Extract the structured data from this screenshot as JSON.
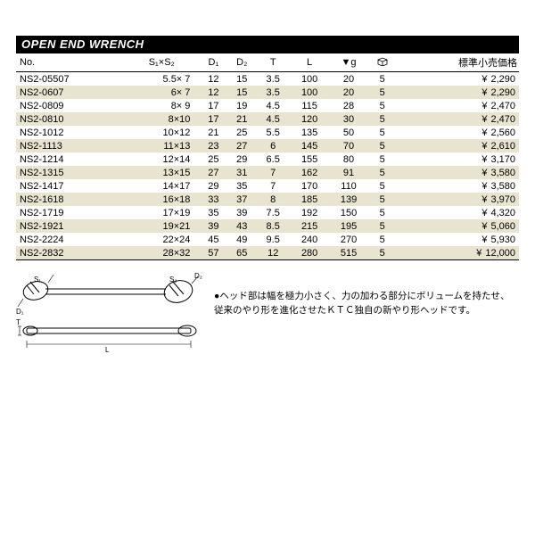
{
  "title": "OPEN END WRENCH",
  "headers": {
    "no": "No.",
    "s1s2": "S₁×S₂",
    "d1": "D₁",
    "d2": "D₂",
    "t": "T",
    "l": "L",
    "g": "▼g",
    "box": "⃞",
    "price": "標準小売価格"
  },
  "rows": [
    {
      "no": "NS2-05507",
      "s": "5.5×  7",
      "d1": "12",
      "d2": "15",
      "t": "3.5",
      "l": "100",
      "g": "20",
      "b": "5",
      "p": "2,290",
      "shade": false
    },
    {
      "no": "NS2-0607",
      "s": "6×  7",
      "d1": "12",
      "d2": "15",
      "t": "3.5",
      "l": "100",
      "g": "20",
      "b": "5",
      "p": "2,290",
      "shade": true
    },
    {
      "no": "NS2-0809",
      "s": "8×  9",
      "d1": "17",
      "d2": "19",
      "t": "4.5",
      "l": "115",
      "g": "28",
      "b": "5",
      "p": "2,470",
      "shade": false
    },
    {
      "no": "NS2-0810",
      "s": "8×10",
      "d1": "17",
      "d2": "21",
      "t": "4.5",
      "l": "120",
      "g": "30",
      "b": "5",
      "p": "2,470",
      "shade": true
    },
    {
      "no": "NS2-1012",
      "s": "10×12",
      "d1": "21",
      "d2": "25",
      "t": "5.5",
      "l": "135",
      "g": "50",
      "b": "5",
      "p": "2,560",
      "shade": false
    },
    {
      "no": "NS2-1113",
      "s": "11×13",
      "d1": "23",
      "d2": "27",
      "t": "6",
      "l": "145",
      "g": "70",
      "b": "5",
      "p": "2,610",
      "shade": true
    },
    {
      "no": "NS2-1214",
      "s": "12×14",
      "d1": "25",
      "d2": "29",
      "t": "6.5",
      "l": "155",
      "g": "80",
      "b": "5",
      "p": "3,170",
      "shade": false
    },
    {
      "no": "NS2-1315",
      "s": "13×15",
      "d1": "27",
      "d2": "31",
      "t": "7",
      "l": "162",
      "g": "91",
      "b": "5",
      "p": "3,580",
      "shade": true
    },
    {
      "no": "NS2-1417",
      "s": "14×17",
      "d1": "29",
      "d2": "35",
      "t": "7",
      "l": "170",
      "g": "110",
      "b": "5",
      "p": "3,580",
      "shade": false
    },
    {
      "no": "NS2-1618",
      "s": "16×18",
      "d1": "33",
      "d2": "37",
      "t": "8",
      "l": "185",
      "g": "139",
      "b": "5",
      "p": "3,970",
      "shade": true
    },
    {
      "no": "NS2-1719",
      "s": "17×19",
      "d1": "35",
      "d2": "39",
      "t": "7.5",
      "l": "192",
      "g": "150",
      "b": "5",
      "p": "4,320",
      "shade": false
    },
    {
      "no": "NS2-1921",
      "s": "19×21",
      "d1": "39",
      "d2": "43",
      "t": "8.5",
      "l": "215",
      "g": "195",
      "b": "5",
      "p": "5,060",
      "shade": true
    },
    {
      "no": "NS2-2224",
      "s": "22×24",
      "d1": "45",
      "d2": "49",
      "t": "9.5",
      "l": "240",
      "g": "270",
      "b": "5",
      "p": "5,930",
      "shade": false
    },
    {
      "no": "NS2-2832",
      "s": "28×32",
      "d1": "57",
      "d2": "65",
      "t": "12",
      "l": "280",
      "g": "515",
      "b": "5",
      "p": "12,000",
      "shade": true
    }
  ],
  "note": "●ヘッド部は幅を極力小さく、力の加わる部分にボリュームを持たせ、従来のやり形を進化させたＫＴＣ独自の新やり形ヘッドです。",
  "diagram_labels": {
    "d1": "D₁",
    "s1": "S₁",
    "s2": "S₂",
    "d2": "D₂",
    "t": "T",
    "l": "L"
  }
}
